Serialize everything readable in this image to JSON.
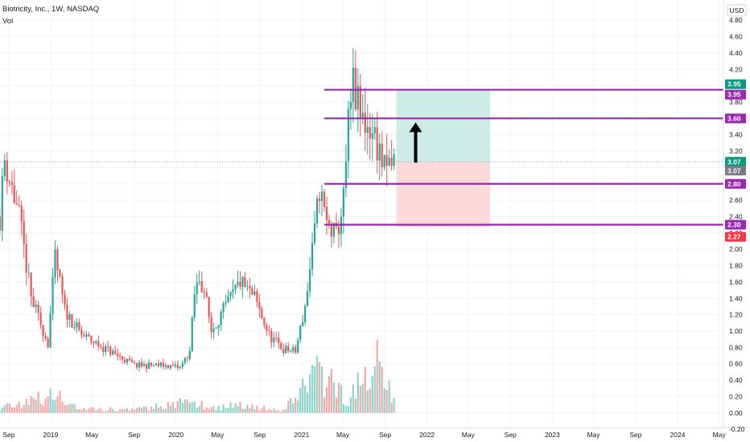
{
  "chart_data": {
    "type": "candlestick",
    "symbol_title": "Biotricity, Inc., 1W, NASDAQ",
    "volume_label": "Vol",
    "currency": "USD",
    "ylim": [
      -0.12,
      4.9
    ],
    "y_ticks": [
      "4.80",
      "4.60",
      "4.40",
      "4.20",
      "4.00",
      "3.80",
      "3.60",
      "3.40",
      "3.20",
      "3.00",
      "2.80",
      "2.60",
      "2.40",
      "2.20",
      "2.00",
      "1.80",
      "1.60",
      "1.40",
      "1.20",
      "1.00",
      "0.80",
      "0.60",
      "0.40",
      "0.20",
      "0.00",
      "-0.20"
    ],
    "x_ticks": [
      {
        "label": "Sep",
        "date": "2018-09"
      },
      {
        "label": "2019",
        "date": "2019-01"
      },
      {
        "label": "May",
        "date": "2019-05"
      },
      {
        "label": "Sep",
        "date": "2019-09"
      },
      {
        "label": "2020",
        "date": "2020-01"
      },
      {
        "label": "May",
        "date": "2020-05"
      },
      {
        "label": "Sep",
        "date": "2020-09"
      },
      {
        "label": "2021",
        "date": "2021-01"
      },
      {
        "label": "May",
        "date": "2021-05"
      },
      {
        "label": "Sep",
        "date": "2021-09"
      },
      {
        "label": "2022",
        "date": "2022-01"
      },
      {
        "label": "May",
        "date": "2022-05"
      },
      {
        "label": "Sep",
        "date": "2022-09"
      },
      {
        "label": "2023",
        "date": "2023-01"
      },
      {
        "label": "May",
        "date": "2023-05"
      },
      {
        "label": "Sep",
        "date": "2023-09"
      },
      {
        "label": "2024",
        "date": "2024-01"
      },
      {
        "label": "May",
        "date": "2024-05"
      }
    ],
    "price_path": [
      {
        "date": "2018-08-06",
        "price": 2.4
      },
      {
        "date": "2018-08-20",
        "price": 3.1
      },
      {
        "date": "2018-10-01",
        "price": 2.4
      },
      {
        "date": "2018-11-05",
        "price": 1.4
      },
      {
        "date": "2018-12-24",
        "price": 0.85
      },
      {
        "date": "2019-01-14",
        "price": 1.9
      },
      {
        "date": "2019-02-11",
        "price": 1.25
      },
      {
        "date": "2019-04-01",
        "price": 0.95
      },
      {
        "date": "2019-06-24",
        "price": 0.75
      },
      {
        "date": "2019-09-02",
        "price": 0.58
      },
      {
        "date": "2019-12-02",
        "price": 0.58
      },
      {
        "date": "2020-01-13",
        "price": 0.55
      },
      {
        "date": "2020-02-10",
        "price": 0.75
      },
      {
        "date": "2020-02-24",
        "price": 1.45
      },
      {
        "date": "2020-03-09",
        "price": 1.65
      },
      {
        "date": "2020-03-23",
        "price": 1.5
      },
      {
        "date": "2020-04-13",
        "price": 1.0
      },
      {
        "date": "2020-05-25",
        "price": 1.3
      },
      {
        "date": "2020-07-06",
        "price": 1.6
      },
      {
        "date": "2020-08-17",
        "price": 1.4
      },
      {
        "date": "2020-09-28",
        "price": 0.95
      },
      {
        "date": "2020-11-09",
        "price": 0.78
      },
      {
        "date": "2020-12-14",
        "price": 0.75
      },
      {
        "date": "2021-01-11",
        "price": 1.3
      },
      {
        "date": "2021-02-08",
        "price": 2.2
      },
      {
        "date": "2021-02-22",
        "price": 2.75
      },
      {
        "date": "2021-03-15",
        "price": 2.3
      },
      {
        "date": "2021-04-12",
        "price": 2.15
      },
      {
        "date": "2021-05-03",
        "price": 2.6
      },
      {
        "date": "2021-05-17",
        "price": 3.5
      },
      {
        "date": "2021-05-31",
        "price": 4.0
      },
      {
        "date": "2021-06-21",
        "price": 3.6
      },
      {
        "date": "2021-07-19",
        "price": 3.5
      },
      {
        "date": "2021-08-09",
        "price": 3.3
      },
      {
        "date": "2021-08-30",
        "price": 2.95
      },
      {
        "date": "2021-09-27",
        "price": 3.07
      }
    ],
    "volume_profile": [
      {
        "date": "2018-08-06",
        "volume": 0.06
      },
      {
        "date": "2018-10-01",
        "volume": 0.12
      },
      {
        "date": "2019-01-14",
        "volume": 0.2
      },
      {
        "date": "2019-04-01",
        "volume": 0.05
      },
      {
        "date": "2019-09-02",
        "volume": 0.04
      },
      {
        "date": "2020-02-24",
        "volume": 0.14
      },
      {
        "date": "2020-04-13",
        "volume": 0.06
      },
      {
        "date": "2020-07-06",
        "volume": 0.1
      },
      {
        "date": "2020-11-09",
        "volume": 0.03
      },
      {
        "date": "2021-02-08",
        "volume": 0.5
      },
      {
        "date": "2021-05-17",
        "volume": 0.18
      },
      {
        "date": "2021-08-09",
        "volume": 0.6
      },
      {
        "date": "2021-09-27",
        "volume": 0.2
      }
    ],
    "last_price": "3.07",
    "horizontal_levels": [
      {
        "price": 3.95,
        "label": "3.95"
      },
      {
        "price": 3.6,
        "label": "3.60"
      },
      {
        "price": 2.8,
        "label": "2.80"
      },
      {
        "price": 2.3,
        "label": "2.30"
      }
    ],
    "position": {
      "type": "long",
      "start_date": "2021-10-04",
      "end_date": "2022-07-04",
      "entry": 3.07,
      "target": 3.95,
      "stop": 2.27,
      "target_label": "3.95",
      "entry_label": "3.07",
      "stop_label": "2.27"
    },
    "arrow": {
      "direction": "up",
      "date": "2021-11-29",
      "from_price": 3.06,
      "to_price": 3.55
    },
    "colors": {
      "up": "#26a69a",
      "down": "#ef5350",
      "volume_up": "#8fd3cb",
      "volume_down": "#f3a8a5",
      "level_line": "#9c27b0",
      "target_zone": "#cdece7",
      "stop_zone": "#fcdada",
      "last_price": "#787b86",
      "target_badge": "#089981",
      "stop_badge": "#f23645"
    }
  }
}
